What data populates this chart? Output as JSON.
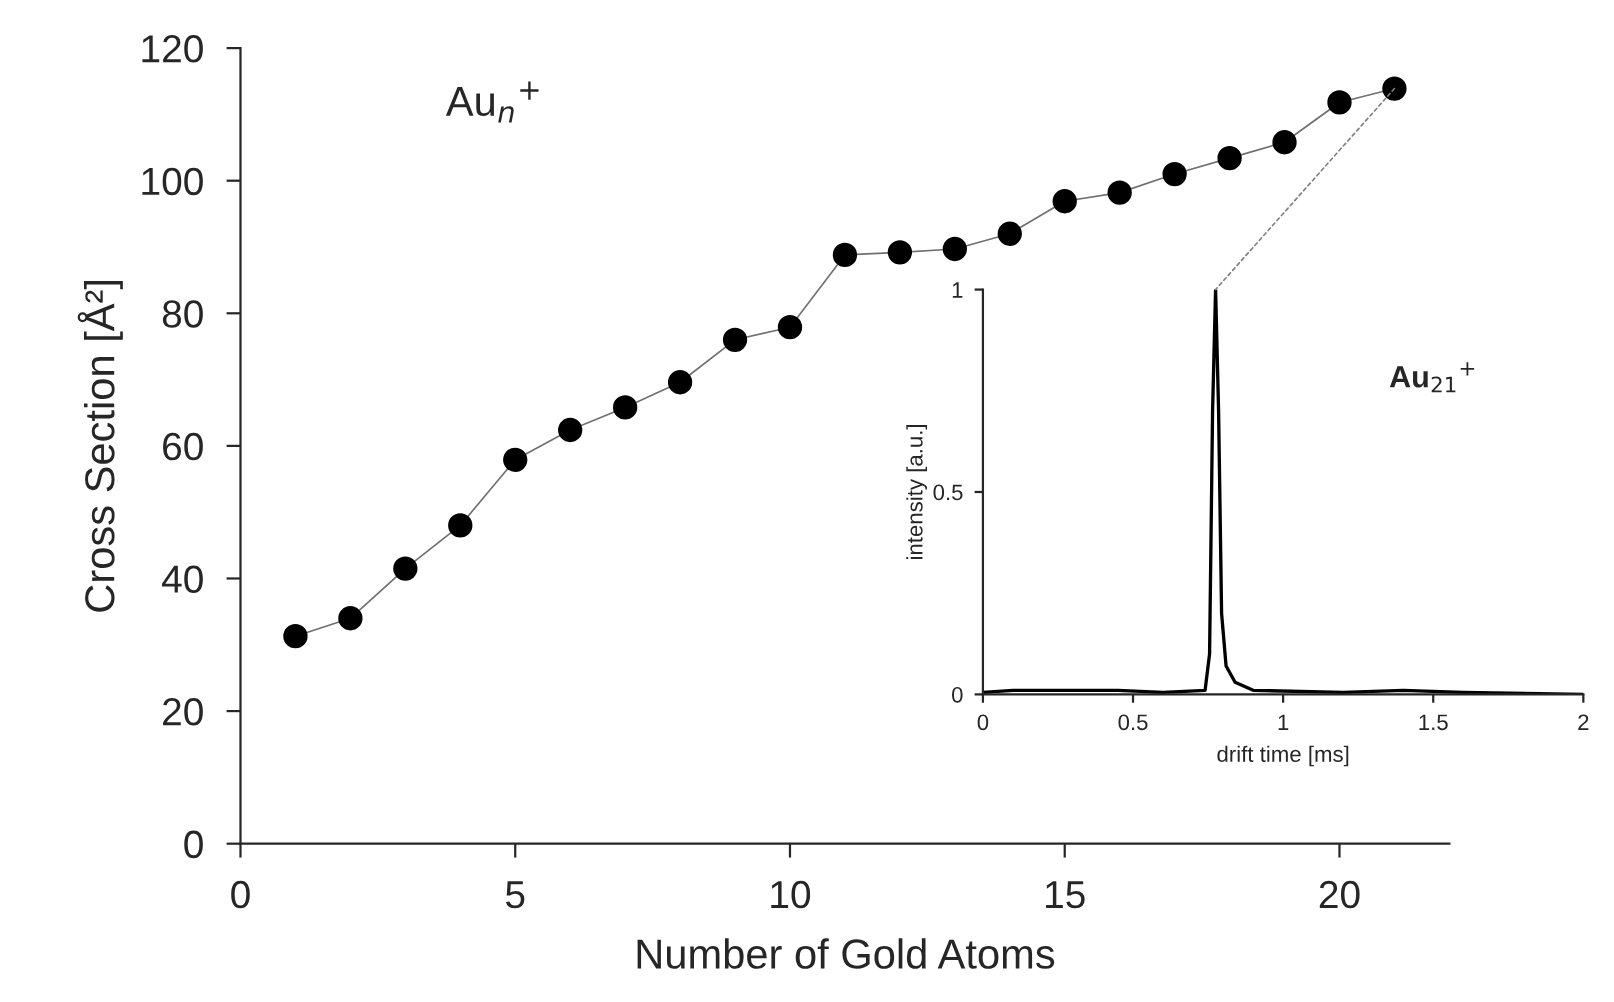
{
  "chart_data": [
    {
      "type": "line",
      "xlabel": "Number of Gold Atoms",
      "ylabel": "Cross Section [Å²]",
      "annotations": [
        "Au$_{n}$$^{+}$"
      ],
      "x": [
        1,
        2,
        3,
        4,
        5,
        6,
        7,
        8,
        9,
        10,
        11,
        12,
        13,
        14,
        15,
        16,
        17,
        18,
        19,
        20,
        21
      ],
      "series": [
        {
          "color": "#000000",
          "values": [
            31.3,
            34,
            41.5,
            48,
            57.9,
            62.4,
            65.8,
            69.6,
            76,
            77.9,
            88.8,
            89.2,
            89.7,
            92,
            96.9,
            98.2,
            101,
            103.4,
            105.8,
            111.8,
            113.9
          ]
        }
      ],
      "xlim": [
        0,
        22
      ],
      "xticks": [
        0,
        5,
        10,
        15,
        20
      ],
      "ylim": [
        0,
        120
      ],
      "yticks": [
        0,
        20,
        40,
        60,
        80,
        100,
        120
      ],
      "marker": "circle",
      "line_style": "solid",
      "grid": false,
      "legend": false
    },
    {
      "type": "line",
      "xlabel": "drift time [ms]",
      "ylabel": "intensity [a.u.]",
      "annotations": [
        "Au$_{21}$$^{+}$"
      ],
      "x": [
        0,
        0.1,
        0.3,
        0.45,
        0.6,
        0.74,
        0.755,
        0.765,
        0.775,
        0.785,
        0.795,
        0.81,
        0.84,
        0.9,
        1.2,
        1.4,
        1.6,
        2
      ],
      "series": [
        {
          "color": "#000000",
          "values": [
            0.005,
            0.01,
            0.01,
            0.01,
            0.005,
            0.01,
            0.1,
            0.7,
            1,
            0.7,
            0.2,
            0.07,
            0.03,
            0.01,
            0.005,
            0.01,
            0.005,
            0
          ]
        }
      ],
      "xlim": [
        0,
        2
      ],
      "xticks": [
        0,
        0.5,
        1,
        1.5,
        2
      ],
      "ylim": [
        0,
        1
      ],
      "yticks": [
        0,
        0.5,
        1
      ],
      "marker": "none",
      "line_style": "solid",
      "grid": false,
      "legend": false
    }
  ]
}
